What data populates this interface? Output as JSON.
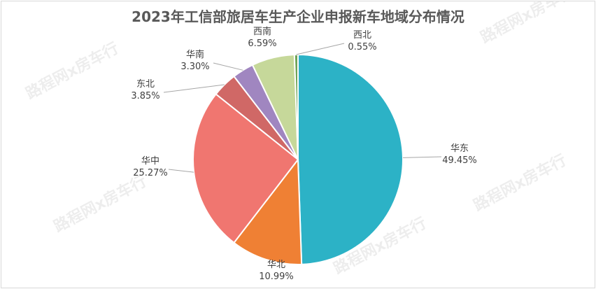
{
  "watermark": "路程网x房车行",
  "chart_data": {
    "type": "pie",
    "title": "2023年工信部旅居车生产企业申报新车地域分布情况",
    "slices": [
      {
        "label": "华东",
        "value": 49.45,
        "value_text": "49.45%",
        "color": "#2cb2c6"
      },
      {
        "label": "华北",
        "value": 10.99,
        "value_text": "10.99%",
        "color": "#ef8034"
      },
      {
        "label": "华中",
        "value": 25.27,
        "value_text": "25.27%",
        "color": "#f07670"
      },
      {
        "label": "东北",
        "value": 3.85,
        "value_text": "3.85%",
        "color": "#d06866"
      },
      {
        "label": "华南",
        "value": 3.3,
        "value_text": "3.30%",
        "color": "#a086c0"
      },
      {
        "label": "西南",
        "value": 6.59,
        "value_text": "6.59%",
        "color": "#c6d89a"
      },
      {
        "label": "西北",
        "value": 0.55,
        "value_text": "0.55%",
        "color": "#6da357"
      }
    ]
  }
}
